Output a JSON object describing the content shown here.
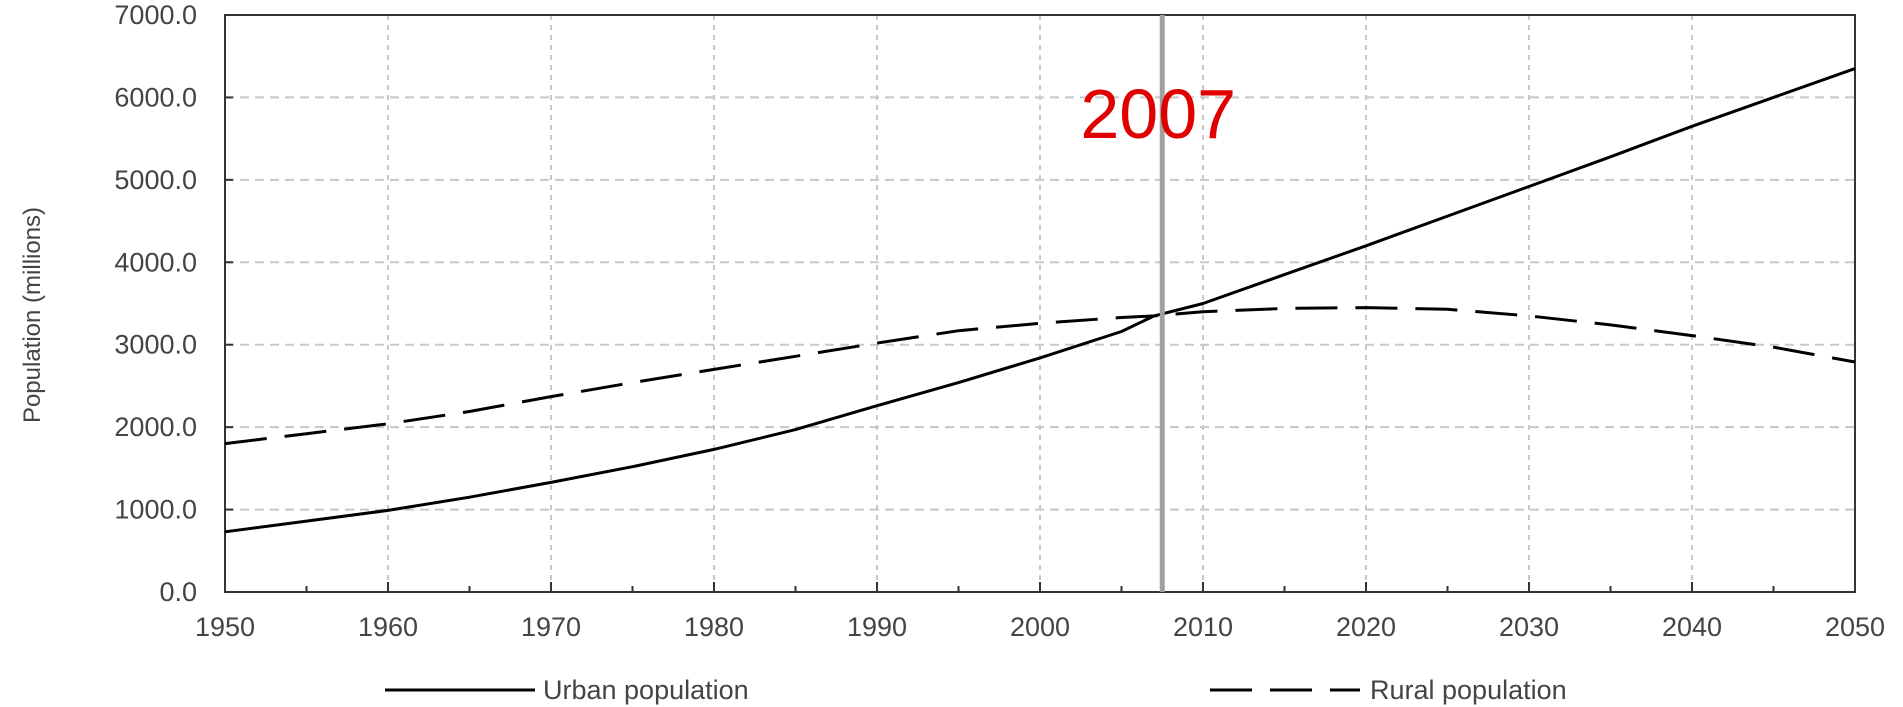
{
  "chart_data": {
    "type": "line",
    "title": "",
    "xlabel": "",
    "ylabel": "Population (millions)",
    "xlim": [
      1950,
      2050
    ],
    "ylim": [
      0,
      7000
    ],
    "x_ticks": [
      "1950",
      "1960",
      "1970",
      "1980",
      "1990",
      "2000",
      "2010",
      "2020",
      "2030",
      "2040",
      "2050"
    ],
    "y_ticks": [
      "0.0",
      "1000.0",
      "2000.0",
      "3000.0",
      "4000.0",
      "5000.0",
      "6000.0",
      "7000.0"
    ],
    "grid": true,
    "legend_position": "bottom",
    "series": [
      {
        "name": "Urban population",
        "style": "solid",
        "color": "#000000",
        "x": [
          1950,
          1955,
          1960,
          1965,
          1970,
          1975,
          1980,
          1985,
          1990,
          1995,
          2000,
          2005,
          2007,
          2010,
          2015,
          2020,
          2025,
          2030,
          2035,
          2040,
          2045,
          2050
        ],
        "y": [
          730,
          860,
          990,
          1150,
          1330,
          1520,
          1730,
          1970,
          2260,
          2540,
          2840,
          3160,
          3350,
          3500,
          3850,
          4200,
          4560,
          4920,
          5280,
          5650,
          6000,
          6350
        ]
      },
      {
        "name": "Rural population",
        "style": "dashed",
        "color": "#000000",
        "x": [
          1950,
          1955,
          1960,
          1965,
          1970,
          1975,
          1980,
          1985,
          1990,
          1995,
          2000,
          2005,
          2007,
          2010,
          2015,
          2020,
          2025,
          2030,
          2035,
          2040,
          2045,
          2050
        ],
        "y": [
          1800,
          1920,
          2040,
          2190,
          2370,
          2540,
          2700,
          2860,
          3020,
          3170,
          3260,
          3330,
          3350,
          3400,
          3440,
          3450,
          3430,
          3350,
          3240,
          3110,
          2970,
          2790
        ]
      }
    ],
    "annotations": [
      {
        "text": "2007",
        "x": 2007.5,
        "color": "#e00000",
        "line_color": "#a0a0a0"
      }
    ]
  }
}
